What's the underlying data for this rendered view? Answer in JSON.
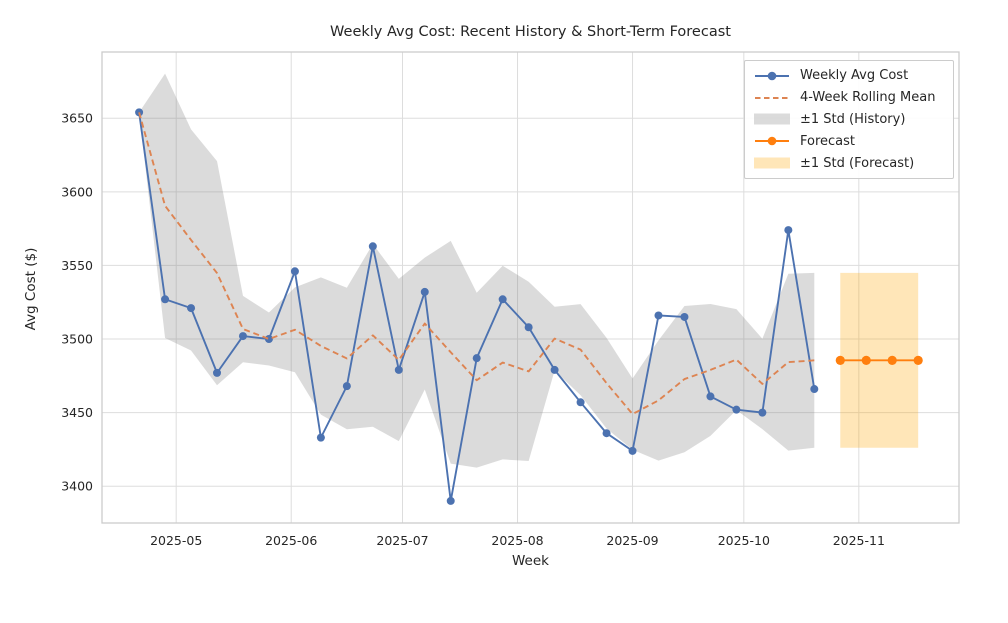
{
  "figure": {
    "title": "Weekly Avg Cost: Recent History & Short-Term Forecast",
    "xlabel": "Week",
    "ylabel": "Avg Cost ($)"
  },
  "axes": {
    "x_ticks": [
      {
        "date": "2025-05-01",
        "label": "2025-05"
      },
      {
        "date": "2025-06-01",
        "label": "2025-06"
      },
      {
        "date": "2025-07-01",
        "label": "2025-07"
      },
      {
        "date": "2025-08-01",
        "label": "2025-08"
      },
      {
        "date": "2025-09-01",
        "label": "2025-09"
      },
      {
        "date": "2025-10-01",
        "label": "2025-10"
      },
      {
        "date": "2025-11-01",
        "label": "2025-11"
      }
    ],
    "y_ticks": [
      3400,
      3450,
      3500,
      3550,
      3600,
      3650
    ],
    "xlim": [
      "2025-04-11",
      "2025-11-28"
    ],
    "ylim": [
      3375,
      3695
    ],
    "grid": true,
    "legend_location": "upper right"
  },
  "colors": {
    "text": "#262626",
    "grid": "#DDDDDD",
    "spine": "#CCCCCC",
    "weekly_line": "#4C72B0",
    "rolling_mean_line": "#DD8452",
    "history_band": "#7F7F7F",
    "forecast_line": "#FF7F0E",
    "forecast_band": "#FFA500"
  },
  "chart_data": {
    "type": "line",
    "title": "Weekly Avg Cost: Recent History & Short-Term Forecast",
    "xlabel": "Week",
    "ylabel": "Avg Cost ($)",
    "series": [
      {
        "name": "Weekly Avg Cost",
        "style": "line-marker",
        "color": "#4C72B0",
        "marker_size": 4,
        "x": [
          "2025-04-21",
          "2025-04-28",
          "2025-05-05",
          "2025-05-12",
          "2025-05-19",
          "2025-05-26",
          "2025-06-02",
          "2025-06-09",
          "2025-06-16",
          "2025-06-23",
          "2025-06-30",
          "2025-07-07",
          "2025-07-14",
          "2025-07-21",
          "2025-07-28",
          "2025-08-04",
          "2025-08-11",
          "2025-08-18",
          "2025-08-25",
          "2025-09-01",
          "2025-09-08",
          "2025-09-15",
          "2025-09-22",
          "2025-09-29",
          "2025-10-06",
          "2025-10-13",
          "2025-10-20"
        ],
        "y": [
          3654,
          3527,
          3521,
          3477,
          3502,
          3500,
          3546,
          3433,
          3468,
          3563,
          3479,
          3532,
          3390,
          3487,
          3527,
          3508,
          3479,
          3457,
          3436,
          3424,
          3516,
          3515,
          3461,
          3452,
          3450,
          3574,
          3466
        ]
      },
      {
        "name": "4-Week Rolling Mean",
        "style": "dashed-line",
        "color": "#DD8452",
        "x": [
          "2025-04-21",
          "2025-04-28",
          "2025-05-05",
          "2025-05-12",
          "2025-05-19",
          "2025-05-26",
          "2025-06-02",
          "2025-06-09",
          "2025-06-16",
          "2025-06-23",
          "2025-06-30",
          "2025-07-07",
          "2025-07-14",
          "2025-07-21",
          "2025-07-28",
          "2025-08-04",
          "2025-08-11",
          "2025-08-18",
          "2025-08-25",
          "2025-09-01",
          "2025-09-08",
          "2025-09-15",
          "2025-09-22",
          "2025-09-29",
          "2025-10-06",
          "2025-10-13",
          "2025-10-20"
        ],
        "y": [
          3654,
          3590.5,
          3567.3,
          3544.8,
          3506.8,
          3500,
          3506.3,
          3495.3,
          3486.8,
          3502.5,
          3485.8,
          3510.5,
          3491,
          3472,
          3484,
          3478,
          3500.3,
          3492.8,
          3470,
          3449,
          3458.3,
          3472.8,
          3479,
          3486,
          3469.5,
          3484.3,
          3485.5
        ]
      },
      {
        "name": "±1 Std (History)",
        "style": "band",
        "color": "#7F7F7F",
        "alpha": 0.28,
        "x": [
          "2025-04-21",
          "2025-04-28",
          "2025-05-05",
          "2025-05-12",
          "2025-05-19",
          "2025-05-26",
          "2025-06-02",
          "2025-06-09",
          "2025-06-16",
          "2025-06-23",
          "2025-06-30",
          "2025-07-07",
          "2025-07-14",
          "2025-07-21",
          "2025-07-28",
          "2025-08-04",
          "2025-08-11",
          "2025-08-18",
          "2025-08-25",
          "2025-09-01",
          "2025-09-08",
          "2025-09-15",
          "2025-09-22",
          "2025-09-29",
          "2025-10-06",
          "2025-10-13",
          "2025-10-20"
        ],
        "upper": [
          3654,
          3680.3,
          3642.4,
          3620.9,
          3529.3,
          3518,
          3535.1,
          3541.9,
          3534.8,
          3564.6,
          3540.9,
          3555.3,
          3566.7,
          3531.4,
          3549.8,
          3538.9,
          3521.9,
          3523.7,
          3500.8,
          3473.2,
          3499.1,
          3522.4,
          3523.8,
          3520.3,
          3500.2,
          3544.3,
          3544.9
        ],
        "lower": [
          3654,
          3500.7,
          3492.2,
          3468.6,
          3484.2,
          3482,
          3477.4,
          3448.6,
          3438.7,
          3440.4,
          3430.6,
          3465.7,
          3415.3,
          3412.6,
          3418.2,
          3417.1,
          3478.6,
          3461.8,
          3439.2,
          3424.8,
          3417.4,
          3423.1,
          3434.2,
          3451.7,
          3438.8,
          3424.2,
          3426.1
        ]
      },
      {
        "name": "Forecast",
        "style": "line-marker",
        "color": "#FF7F0E",
        "marker_size": 4.6,
        "x": [
          "2025-10-27",
          "2025-11-03",
          "2025-11-10",
          "2025-11-17"
        ],
        "y": [
          3485.5,
          3485.5,
          3485.5,
          3485.5
        ]
      },
      {
        "name": "±1 Std (Forecast)",
        "style": "band",
        "color": "#FFA500",
        "alpha": 0.28,
        "x": [
          "2025-10-27",
          "2025-11-17"
        ],
        "upper": [
          3544.9,
          3544.9
        ],
        "lower": [
          3426.1,
          3426.1
        ]
      }
    ]
  }
}
